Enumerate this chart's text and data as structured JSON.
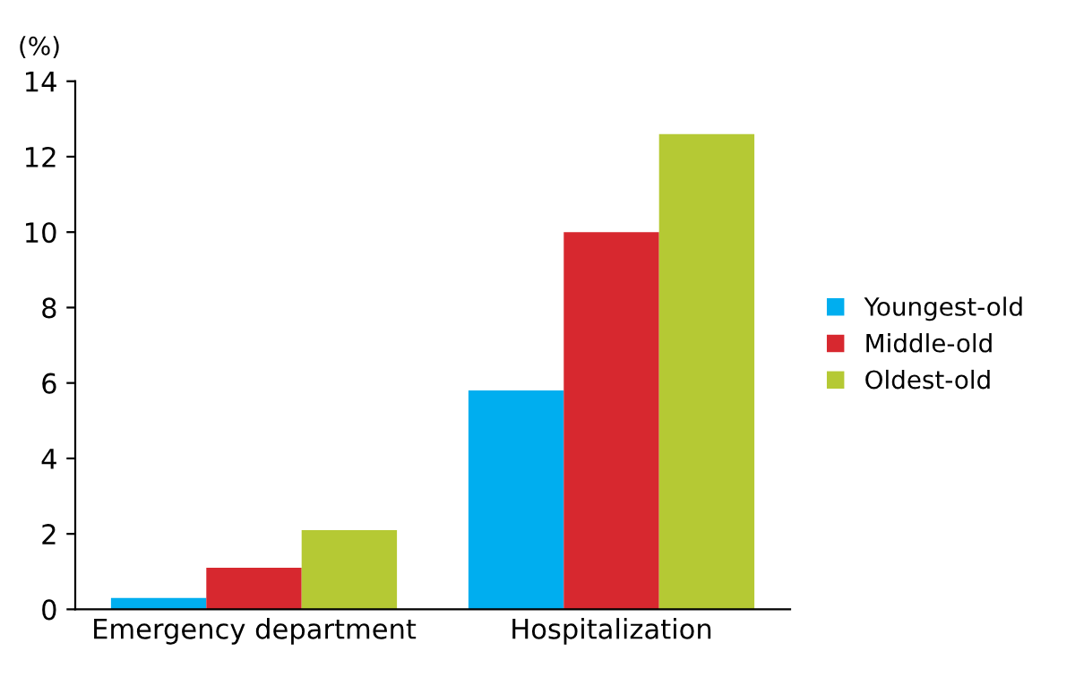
{
  "chart_data": {
    "type": "bar",
    "ylabel": "(%)",
    "categories": [
      "Emergency department",
      "Hospitalization"
    ],
    "series": [
      {
        "name": "Youngest-old",
        "color": "#00aeef",
        "values": [
          0.3,
          5.8
        ]
      },
      {
        "name": "Middle-old",
        "color": "#d7282f",
        "values": [
          1.1,
          10.0
        ]
      },
      {
        "name": "Oldest-old",
        "color": "#b5c934",
        "values": [
          2.1,
          12.6
        ]
      }
    ],
    "ylim": [
      0,
      14
    ],
    "yticks": [
      0,
      2,
      4,
      6,
      8,
      10,
      12,
      14
    ],
    "grid": false,
    "legend": "right"
  }
}
